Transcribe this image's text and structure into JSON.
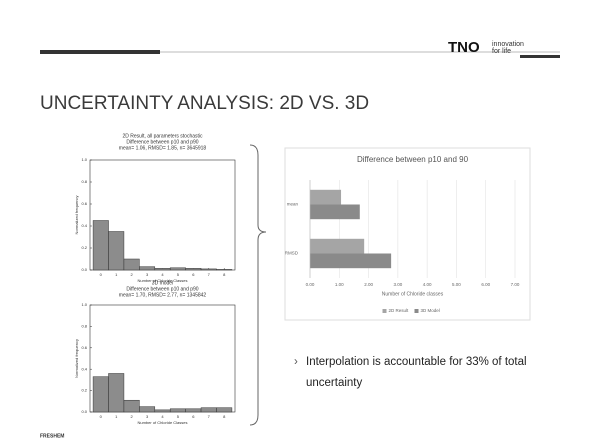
{
  "slide": {
    "title": "UNCERTAINTY ANALYSIS: 2D VS. 3D",
    "logo": "TNO",
    "tagline_1": "innovation",
    "tagline_2": "for life",
    "bullet": "Interpolation is accountable for 33% of total uncertainty",
    "footer": "FRESHEM"
  },
  "chart_data": [
    {
      "type": "histogram",
      "title": "2D Result, all parameters stochastic",
      "subtitle": "Difference between p10 and p90",
      "annotation": "mean= 1.06, RMSD= 1.85, n= 3645918",
      "x_label": "Number of Chloride Classes",
      "y_label": "Normalized frequency",
      "bins": [
        -0.5,
        0.5,
        1.5,
        2.5,
        3.5,
        4.5,
        5.5,
        6.5,
        7.5,
        8.5
      ],
      "values": [
        0.45,
        0.35,
        0.1,
        0.03,
        0.015,
        0.02,
        0.015,
        0.01,
        0.005
      ],
      "color": "#8c8c8c",
      "xlim": [
        -0.7,
        8.7
      ],
      "xticks": [
        0,
        1,
        2,
        3,
        4,
        5,
        6,
        7,
        8
      ],
      "ylim": [
        0,
        1
      ],
      "yticks": [
        {
          "value": 0,
          "label": "0.0"
        },
        {
          "value": 0.2,
          "label": "0.2"
        },
        {
          "value": 0.4,
          "label": "0.4"
        },
        {
          "value": 0.6,
          "label": "0.6"
        },
        {
          "value": 0.8,
          "label": "0.8"
        },
        {
          "value": 1,
          "label": "1.0"
        }
      ]
    },
    {
      "type": "histogram",
      "title": "3D model",
      "subtitle": "Difference between p10 and p90",
      "annotation": "mean= 1.70, RMSD= 2.77, n= 1345842",
      "x_label": "Number of Chloride Classes",
      "y_label": "Normalized frequency",
      "bins": [
        -0.5,
        0.5,
        1.5,
        2.5,
        3.5,
        4.5,
        5.5,
        6.5,
        7.5,
        8.5
      ],
      "values": [
        0.33,
        0.36,
        0.11,
        0.05,
        0.02,
        0.03,
        0.03,
        0.04,
        0.04
      ],
      "color": "#8c8c8c",
      "xlim": [
        -0.7,
        8.7
      ],
      "xticks": [
        0,
        1,
        2,
        3,
        4,
        5,
        6,
        7,
        8
      ],
      "ylim": [
        0,
        1
      ],
      "yticks": [
        {
          "value": 0,
          "label": "0.0"
        },
        {
          "value": 0.2,
          "label": "0.2"
        },
        {
          "value": 0.4,
          "label": "0.4"
        },
        {
          "value": 0.6,
          "label": "0.6"
        },
        {
          "value": 0.8,
          "label": "0.8"
        },
        {
          "value": 1,
          "label": "1.0"
        }
      ]
    },
    {
      "type": "hbar",
      "title": "Difference between p10 and 90",
      "x_label": "Number of Chloride classes",
      "categories": [
        "mean",
        "RMSD"
      ],
      "series": [
        {
          "name": "2D Result",
          "color": "#a5a5a5",
          "values": [
            1.06,
            1.85
          ]
        },
        {
          "name": "3D Model",
          "color": "#8a8a8a",
          "values": [
            1.7,
            2.77
          ]
        }
      ],
      "xlim": [
        0,
        7
      ],
      "xticks": [
        {
          "value": 0,
          "label": "0.00"
        },
        {
          "value": 1,
          "label": "1.00"
        },
        {
          "value": 2,
          "label": "2.00"
        },
        {
          "value": 3,
          "label": "3.00"
        },
        {
          "value": 4,
          "label": "4.00"
        },
        {
          "value": 5,
          "label": "5.00"
        },
        {
          "value": 6,
          "label": "6.00"
        },
        {
          "value": 7,
          "label": "7.00"
        }
      ],
      "legend": "bottom",
      "grid": true
    }
  ]
}
